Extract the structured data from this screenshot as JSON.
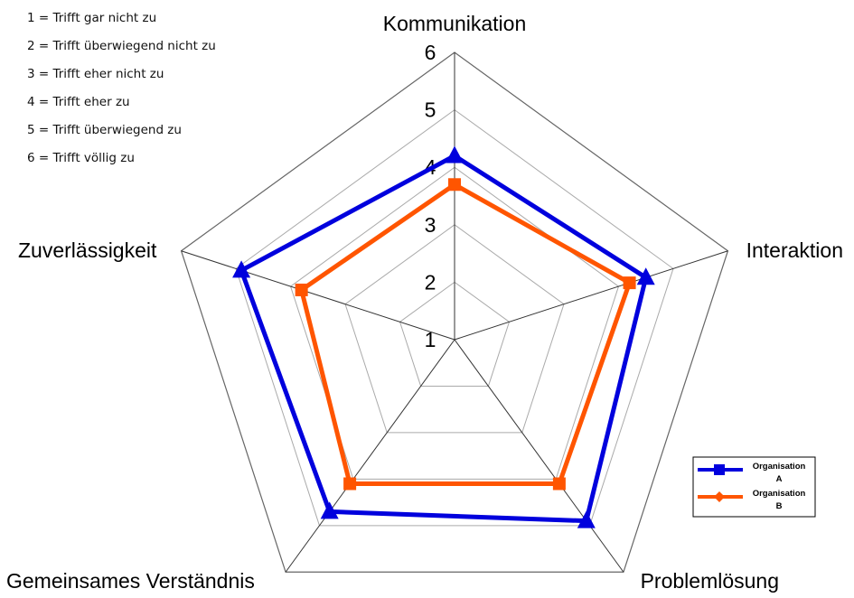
{
  "scale_legend": [
    "1 = Trifft gar nicht zu",
    "2 = Trifft überwiegend nicht zu",
    "3 = Trifft eher nicht zu",
    "4 = Trifft eher zu",
    "5 = Trifft überwiegend zu",
    "6 = Trifft völlig zu"
  ],
  "chart_data": {
    "type": "radar",
    "categories": [
      "Kommunikation",
      "Interaktion",
      "Problemlösung",
      "Gemeinsames Verständnis",
      "Zuverlässigkeit"
    ],
    "r_ticks": [
      "1",
      "2",
      "3",
      "4",
      "5",
      "6"
    ],
    "rlim": [
      1,
      6
    ],
    "grid": true,
    "legend_position": "bottom-right",
    "series": [
      {
        "name": "Organisation A",
        "color": "#0000dd",
        "marker": "triangle",
        "values": [
          4.2,
          4.5,
          4.9,
          4.7,
          4.9
        ]
      },
      {
        "name": "Organisation B",
        "color": "#ff5500",
        "marker": "square",
        "values": [
          3.7,
          4.2,
          4.1,
          4.1,
          3.8
        ]
      }
    ]
  }
}
